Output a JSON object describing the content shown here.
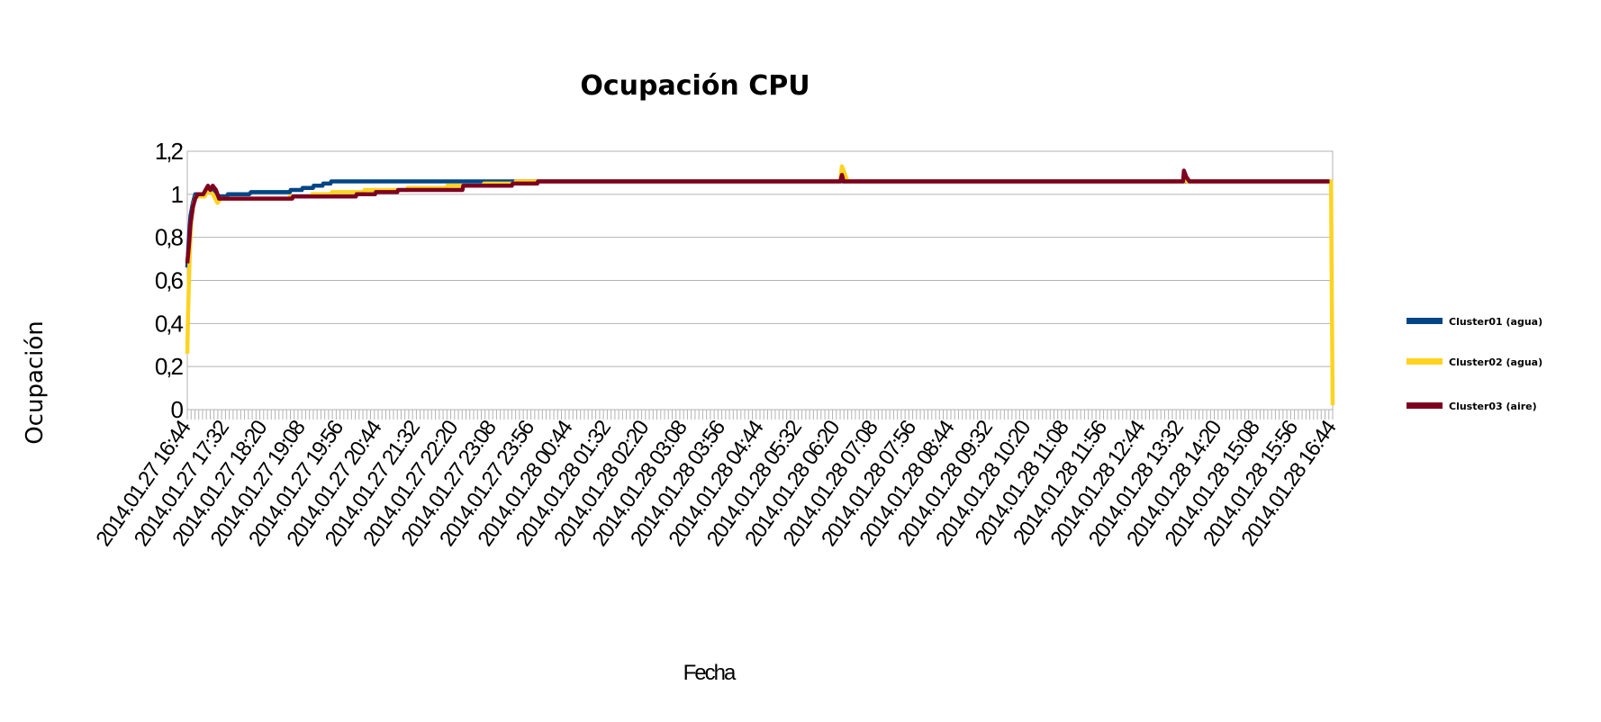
{
  "colors": {
    "cluster01": "#004586",
    "cluster02": "#ffd320",
    "cluster03": "#7e0021",
    "grid": "#b3b3b3"
  },
  "chart_data": {
    "type": "line",
    "title": "Ocupación CPU",
    "xlabel": "Fecha",
    "ylabel": "Ocupación",
    "ylim": [
      0,
      1.2
    ],
    "yticks": [
      "0",
      "0,2",
      "0,4",
      "0,6",
      "0,8",
      "1",
      "1,2"
    ],
    "grid": true,
    "legend_position": "right",
    "x_tick_labels": [
      "2014.01.27 16:44",
      "2014.01.27 17:32",
      "2014.01.27 18:20",
      "2014.01.27 19:08",
      "2014.01.27 19:56",
      "2014.01.27 20:44",
      "2014.01.27 21:32",
      "2014.01.27 22:20",
      "2014.01.27 23:08",
      "2014.01.27 23:56",
      "2014.01.28 00:44",
      "2014.01.28 01:32",
      "2014.01.28 02:20",
      "2014.01.28 03:08",
      "2014.01.28 03:56",
      "2014.01.28 04:44",
      "2014.01.28 05:32",
      "2014.01.28 06:20",
      "2014.01.28 07:08",
      "2014.01.28 07:56",
      "2014.01.28 08:44",
      "2014.01.28 09:32",
      "2014.01.28 10:20",
      "2014.01.28 11:08",
      "2014.01.28 11:56",
      "2014.01.28 12:44",
      "2014.01.28 13:32",
      "2014.01.28 14:20",
      "2014.01.28 15:08",
      "2014.01.28 15:56",
      "2014.01.28 16:44"
    ],
    "x_range": [
      "2014.01.27 16:44",
      "2014.01.28 16:44"
    ],
    "series": [
      {
        "name": "Cluster01  (agua)",
        "color": "#004586",
        "points": [
          [
            "2014.01.27 16:44",
            0.66
          ],
          [
            "2014.01.27 16:46",
            0.8
          ],
          [
            "2014.01.27 16:48",
            0.9
          ],
          [
            "2014.01.27 16:51",
            0.96
          ],
          [
            "2014.01.27 16:54",
            1.0
          ],
          [
            "2014.01.27 17:04",
            1.0
          ],
          [
            "2014.01.27 17:08",
            1.02
          ],
          [
            "2014.01.27 17:12",
            1.03
          ],
          [
            "2014.01.27 17:18",
            1.02
          ],
          [
            "2014.01.27 17:22",
            0.99
          ],
          [
            "2014.01.27 17:34",
            0.99
          ],
          [
            "2014.01.27 17:35",
            1.0
          ],
          [
            "2014.01.27 18:02",
            1.0
          ],
          [
            "2014.01.27 18:04",
            1.01
          ],
          [
            "2014.01.27 18:53",
            1.01
          ],
          [
            "2014.01.27 18:54",
            1.02
          ],
          [
            "2014.01.27 19:08",
            1.02
          ],
          [
            "2014.01.27 19:09",
            1.03
          ],
          [
            "2014.01.27 19:22",
            1.03
          ],
          [
            "2014.01.27 19:23",
            1.04
          ],
          [
            "2014.01.27 19:34",
            1.04
          ],
          [
            "2014.01.27 19:35",
            1.05
          ],
          [
            "2014.01.27 19:44",
            1.05
          ],
          [
            "2014.01.27 19:45",
            1.06
          ],
          [
            "2014.01.28 16:30",
            1.06
          ],
          [
            "2014.01.28 16:40",
            1.06
          ]
        ]
      },
      {
        "name": "Cluster02 (agua)",
        "color": "#ffd320",
        "points": [
          [
            "2014.01.27 16:44",
            0.26
          ],
          [
            "2014.01.27 16:45",
            0.45
          ],
          [
            "2014.01.27 16:47",
            0.72
          ],
          [
            "2014.01.27 16:49",
            0.88
          ],
          [
            "2014.01.27 16:52",
            0.96
          ],
          [
            "2014.01.27 16:55",
            0.99
          ],
          [
            "2014.01.27 17:06",
            0.99
          ],
          [
            "2014.01.27 17:10",
            1.02
          ],
          [
            "2014.01.27 17:16",
            1.0
          ],
          [
            "2014.01.27 17:22",
            0.96
          ],
          [
            "2014.01.27 17:26",
            0.98
          ],
          [
            "2014.01.27 18:52",
            0.98
          ],
          [
            "2014.01.27 18:53",
            0.99
          ],
          [
            "2014.01.27 19:20",
            0.99
          ],
          [
            "2014.01.27 19:21",
            1.0
          ],
          [
            "2014.01.27 19:45",
            1.0
          ],
          [
            "2014.01.27 19:46",
            1.01
          ],
          [
            "2014.01.27 20:26",
            1.01
          ],
          [
            "2014.01.27 20:27",
            1.02
          ],
          [
            "2014.01.27 21:20",
            1.02
          ],
          [
            "2014.01.27 21:21",
            1.03
          ],
          [
            "2014.01.27 22:10",
            1.03
          ],
          [
            "2014.01.27 22:11",
            1.04
          ],
          [
            "2014.01.27 22:56",
            1.04
          ],
          [
            "2014.01.27 22:57",
            1.05
          ],
          [
            "2014.01.27 23:36",
            1.05
          ],
          [
            "2014.01.27 23:37",
            1.06
          ],
          [
            "2014.01.28 06:25",
            1.06
          ],
          [
            "2014.01.28 06:27",
            1.13
          ],
          [
            "2014.01.28 06:31",
            1.09
          ],
          [
            "2014.01.28 06:34",
            1.06
          ],
          [
            "2014.01.28 13:37",
            1.06
          ],
          [
            "2014.01.28 13:39",
            1.09
          ],
          [
            "2014.01.28 13:41",
            1.06
          ],
          [
            "2014.01.28 16:42",
            1.06
          ],
          [
            "2014.01.28 16:43",
            0.5
          ],
          [
            "2014.01.28 16:44",
            0.02
          ]
        ]
      },
      {
        "name": "Cluster03 (aire)",
        "color": "#7e0021",
        "points": [
          [
            "2014.01.27 16:44",
            0.68
          ],
          [
            "2014.01.27 16:46",
            0.76
          ],
          [
            "2014.01.27 16:48",
            0.86
          ],
          [
            "2014.01.27 16:51",
            0.94
          ],
          [
            "2014.01.27 16:54",
            0.98
          ],
          [
            "2014.01.27 16:57",
            1.0
          ],
          [
            "2014.01.27 17:04",
            1.0
          ],
          [
            "2014.01.27 17:07",
            1.02
          ],
          [
            "2014.01.27 17:10",
            1.04
          ],
          [
            "2014.01.27 17:13",
            1.02
          ],
          [
            "2014.01.27 17:16",
            1.04
          ],
          [
            "2014.01.27 17:20",
            1.02
          ],
          [
            "2014.01.27 17:24",
            0.98
          ],
          [
            "2014.01.27 18:56",
            0.98
          ],
          [
            "2014.01.27 18:57",
            0.99
          ],
          [
            "2014.01.27 20:16",
            0.99
          ],
          [
            "2014.01.27 20:17",
            1.0
          ],
          [
            "2014.01.27 20:40",
            1.0
          ],
          [
            "2014.01.27 20:41",
            1.01
          ],
          [
            "2014.01.27 21:08",
            1.01
          ],
          [
            "2014.01.27 21:09",
            1.02
          ],
          [
            "2014.01.27 22:30",
            1.02
          ],
          [
            "2014.01.27 22:31",
            1.04
          ],
          [
            "2014.01.27 23:32",
            1.04
          ],
          [
            "2014.01.27 23:33",
            1.05
          ],
          [
            "2014.01.28 00:04",
            1.05
          ],
          [
            "2014.01.28 00:05",
            1.06
          ],
          [
            "2014.01.28 06:25",
            1.06
          ],
          [
            "2014.01.28 06:27",
            1.09
          ],
          [
            "2014.01.28 06:29",
            1.06
          ],
          [
            "2014.01.28 13:36",
            1.06
          ],
          [
            "2014.01.28 13:37",
            1.11
          ],
          [
            "2014.01.28 13:40",
            1.08
          ],
          [
            "2014.01.28 13:44",
            1.06
          ],
          [
            "2014.01.28 16:40",
            1.06
          ]
        ]
      }
    ]
  }
}
